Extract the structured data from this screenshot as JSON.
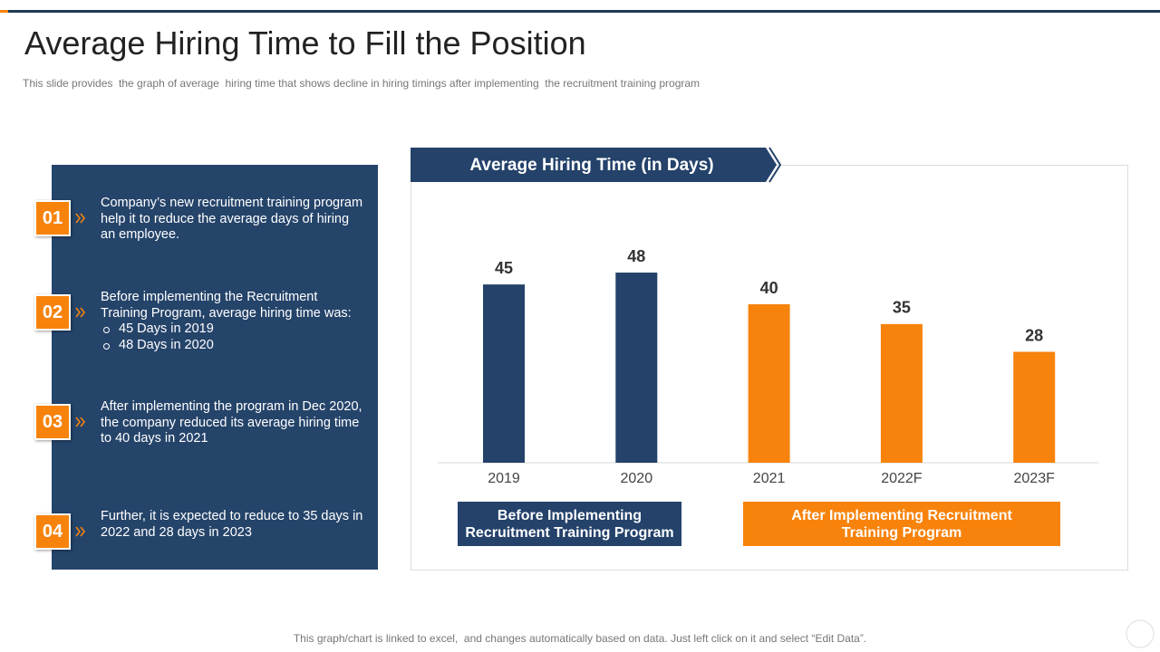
{
  "title": "Average Hiring Time to Fill the Position",
  "subtitle": "This slide provides  the graph of average  hiring time that shows decline in hiring timings after implementing  the recruitment training program",
  "points": [
    {
      "number": "01",
      "text": "Company’s new recruitment training program help it to reduce the average days of hiring an employee."
    },
    {
      "number": "02",
      "text": "Before implementing the Recruitment Training Program, average hiring time was:",
      "bullets": [
        "45 Days in 2019",
        "48 Days in 2020"
      ]
    },
    {
      "number": "03",
      "text": "After implementing the program in Dec 2020, the company reduced its average hiring time to 40 days in 2021"
    },
    {
      "number": "04",
      "text": "Further, it is expected to reduce to 35 days in 2022 and 28 days in 2023"
    }
  ],
  "chart_data": {
    "type": "bar",
    "title": "Average Hiring Time (in Days)",
    "categories": [
      "2019",
      "2020",
      "2021",
      "2022F",
      "2023F"
    ],
    "values": [
      45,
      48,
      40,
      35,
      28
    ],
    "colors": [
      "#24426a",
      "#24426a",
      "#f7830d",
      "#f7830d",
      "#f7830d"
    ],
    "groups": [
      {
        "label": "Before Implementing Recruitment Training Program",
        "color": "#24426a"
      },
      {
        "label": "After Implementing Recruitment Training Program",
        "color": "#f7830d"
      }
    ]
  },
  "footer": "This graph/chart is linked to excel,  and changes automatically based on data. Just left click on it and select “Edit Data”."
}
